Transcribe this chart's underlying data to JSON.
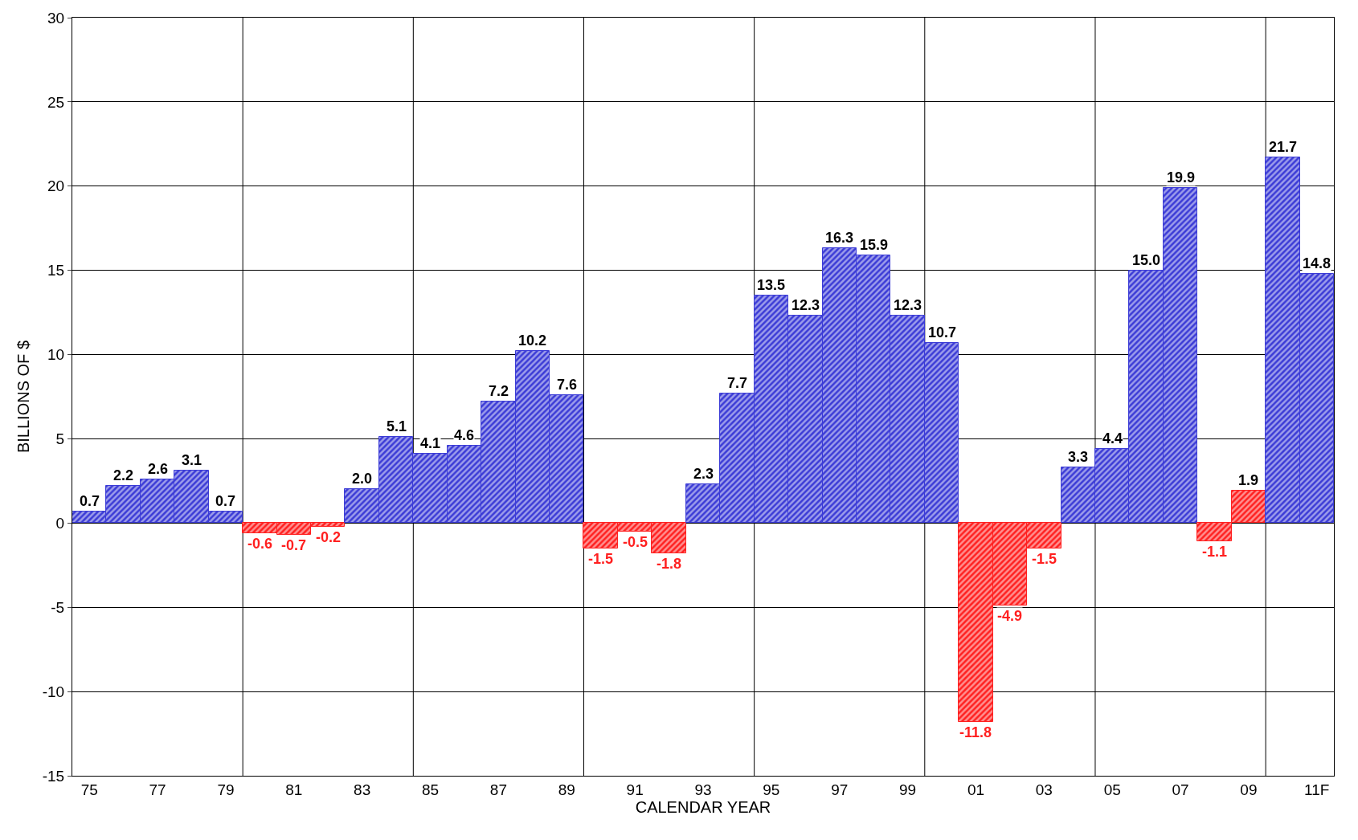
{
  "chart_data": {
    "type": "bar",
    "xlabel": "CALENDAR YEAR",
    "ylabel": "BILLIONS OF $",
    "categories": [
      "75",
      null,
      "77",
      null,
      "79",
      null,
      "81",
      null,
      "83",
      null,
      "85",
      null,
      "87",
      null,
      "89",
      null,
      "91",
      null,
      "93",
      null,
      "95",
      null,
      "97",
      null,
      "99",
      null,
      "01",
      null,
      "03",
      null,
      "05",
      null,
      "07",
      null,
      "09",
      null,
      "11F"
    ],
    "values": [
      0.7,
      2.2,
      2.6,
      3.1,
      0.7,
      -0.6,
      -0.7,
      -0.2,
      2.0,
      5.1,
      4.1,
      4.6,
      7.2,
      10.2,
      7.6,
      -1.5,
      -0.5,
      -1.8,
      2.3,
      7.7,
      13.5,
      12.3,
      16.3,
      15.9,
      12.3,
      10.7,
      -11.8,
      -4.9,
      -1.5,
      3.3,
      4.4,
      15.0,
      19.9,
      -1.1,
      1.9,
      21.7,
      14.8
    ],
    "colors": [
      "#3b3bd6",
      "#3b3bd6",
      "#3b3bd6",
      "#3b3bd6",
      "#3b3bd6",
      "#ff2020",
      "#ff2020",
      "#ff2020",
      "#3b3bd6",
      "#3b3bd6",
      "#3b3bd6",
      "#3b3bd6",
      "#3b3bd6",
      "#3b3bd6",
      "#3b3bd6",
      "#ff2020",
      "#ff2020",
      "#ff2020",
      "#3b3bd6",
      "#3b3bd6",
      "#3b3bd6",
      "#3b3bd6",
      "#3b3bd6",
      "#3b3bd6",
      "#3b3bd6",
      "#3b3bd6",
      "#ff2020",
      "#ff2020",
      "#ff2020",
      "#3b3bd6",
      "#3b3bd6",
      "#3b3bd6",
      "#3b3bd6",
      "#ff2020",
      "#ff2020",
      "#3b3bd6",
      "#3b3bd6"
    ],
    "ylim": [
      -15,
      30
    ],
    "yticks": [
      -15,
      -10,
      -5,
      0,
      5,
      10,
      15,
      20,
      25,
      30
    ],
    "value_labels": [
      "0.7",
      "2.2",
      "2.6",
      "3.1",
      "0.7",
      "-0.6",
      "-0.7",
      "-0.2",
      "2.0",
      "5.1",
      "4.1",
      "4.6",
      "7.2",
      "10.2",
      "7.6",
      "-1.5",
      "-0.5",
      "-1.8",
      "2.3",
      "7.7",
      "13.5",
      "12.3",
      "16.3",
      "15.9",
      "12.3",
      "10.7",
      "-11.8",
      "-4.9",
      "-1.5",
      "3.3",
      "4.4",
      "15.0",
      "19.9",
      "-1.1",
      "1.9",
      "21.7",
      "14.8"
    ],
    "grid": true
  }
}
